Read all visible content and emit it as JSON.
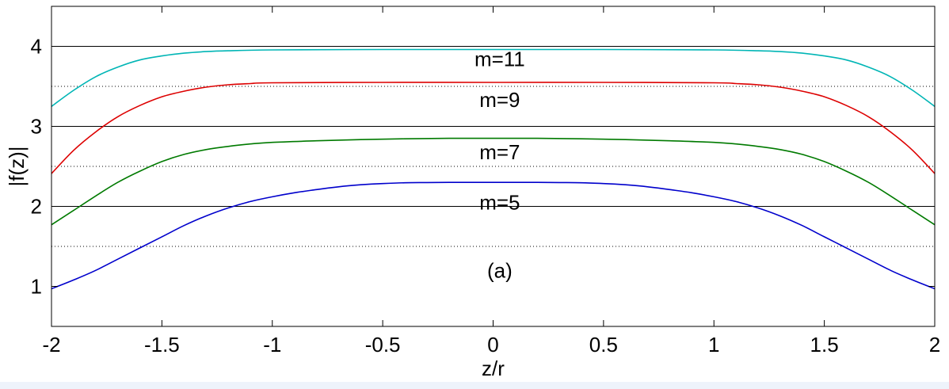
{
  "chart_data": {
    "type": "line",
    "xlabel": "z/r",
    "ylabel": "|f(z)|",
    "xlim": [
      -2,
      2
    ],
    "ylim": [
      0.5,
      4.5
    ],
    "xticks": [
      "-2",
      "-1.5",
      "-1",
      "-0.5",
      "0",
      "0.5",
      "1",
      "1.5",
      "2"
    ],
    "yticks": [
      "1",
      "2",
      "3",
      "4"
    ],
    "hlines_solid": [
      2,
      3,
      4
    ],
    "hlines_dotted": [
      1.5,
      2.5,
      3.5
    ],
    "panel_label": "(a)",
    "panel_label_pos": [
      0.03,
      1.2
    ],
    "colors": {
      "m5": "#0000cc",
      "m7": "#007a00",
      "m9": "#dd0000",
      "m11": "#00b5b5"
    },
    "series": [
      {
        "id": "m5",
        "label": "m=5",
        "label_pos": [
          0.03,
          2.05
        ],
        "x": [
          -2,
          -1.9,
          -1.8,
          -1.7,
          -1.6,
          -1.5,
          -1.4,
          -1.3,
          -1.2,
          -1.1,
          -1.0,
          -0.9,
          -0.8,
          -0.7,
          -0.6,
          -0.5,
          -0.4,
          -0.3,
          -0.2,
          -0.1,
          0,
          0.1,
          0.2,
          0.3,
          0.4,
          0.5,
          0.6,
          0.7,
          0.8,
          0.9,
          1.0,
          1.1,
          1.2,
          1.3,
          1.4,
          1.5,
          1.6,
          1.7,
          1.8,
          1.9,
          2
        ],
        "y": [
          0.97,
          1.08,
          1.2,
          1.34,
          1.48,
          1.62,
          1.76,
          1.88,
          1.98,
          2.06,
          2.12,
          2.17,
          2.21,
          2.245,
          2.27,
          2.285,
          2.295,
          2.298,
          2.3,
          2.3,
          2.3,
          2.3,
          2.3,
          2.298,
          2.295,
          2.285,
          2.27,
          2.245,
          2.21,
          2.17,
          2.12,
          2.06,
          1.98,
          1.88,
          1.76,
          1.62,
          1.48,
          1.34,
          1.2,
          1.08,
          0.97
        ]
      },
      {
        "id": "m7",
        "label": "m=7",
        "label_pos": [
          0.03,
          2.68
        ],
        "x": [
          -2,
          -1.9,
          -1.8,
          -1.7,
          -1.6,
          -1.5,
          -1.4,
          -1.3,
          -1.2,
          -1.1,
          -1.0,
          -0.8,
          -0.6,
          -0.4,
          -0.2,
          0,
          0.2,
          0.4,
          0.6,
          0.8,
          1.0,
          1.1,
          1.2,
          1.3,
          1.4,
          1.5,
          1.6,
          1.7,
          1.8,
          1.9,
          2
        ],
        "y": [
          1.77,
          1.95,
          2.13,
          2.3,
          2.44,
          2.56,
          2.65,
          2.71,
          2.75,
          2.78,
          2.8,
          2.82,
          2.835,
          2.845,
          2.85,
          2.85,
          2.85,
          2.845,
          2.835,
          2.82,
          2.8,
          2.78,
          2.75,
          2.71,
          2.65,
          2.56,
          2.44,
          2.3,
          2.13,
          1.95,
          1.77
        ]
      },
      {
        "id": "m9",
        "label": "m=9",
        "label_pos": [
          0.03,
          3.33
        ],
        "x": [
          -2,
          -1.9,
          -1.8,
          -1.7,
          -1.6,
          -1.5,
          -1.4,
          -1.3,
          -1.2,
          -1.1,
          -1.0,
          -0.5,
          0,
          0.5,
          1.0,
          1.1,
          1.2,
          1.3,
          1.4,
          1.5,
          1.6,
          1.7,
          1.8,
          1.9,
          2
        ],
        "y": [
          2.41,
          2.7,
          2.93,
          3.12,
          3.26,
          3.37,
          3.44,
          3.49,
          3.52,
          3.535,
          3.545,
          3.55,
          3.55,
          3.55,
          3.545,
          3.535,
          3.52,
          3.49,
          3.44,
          3.37,
          3.26,
          3.12,
          2.93,
          2.7,
          2.41
        ]
      },
      {
        "id": "m11",
        "label": "m=11",
        "label_pos": [
          0.03,
          3.84
        ],
        "x": [
          -2,
          -1.9,
          -1.8,
          -1.7,
          -1.6,
          -1.5,
          -1.4,
          -1.3,
          -1.2,
          -1.0,
          -0.5,
          0,
          0.5,
          1.0,
          1.2,
          1.3,
          1.4,
          1.5,
          1.6,
          1.7,
          1.8,
          1.9,
          2
        ],
        "y": [
          3.25,
          3.45,
          3.62,
          3.74,
          3.83,
          3.88,
          3.915,
          3.935,
          3.945,
          3.955,
          3.96,
          3.96,
          3.96,
          3.955,
          3.945,
          3.935,
          3.915,
          3.88,
          3.83,
          3.74,
          3.62,
          3.45,
          3.25
        ]
      }
    ]
  }
}
